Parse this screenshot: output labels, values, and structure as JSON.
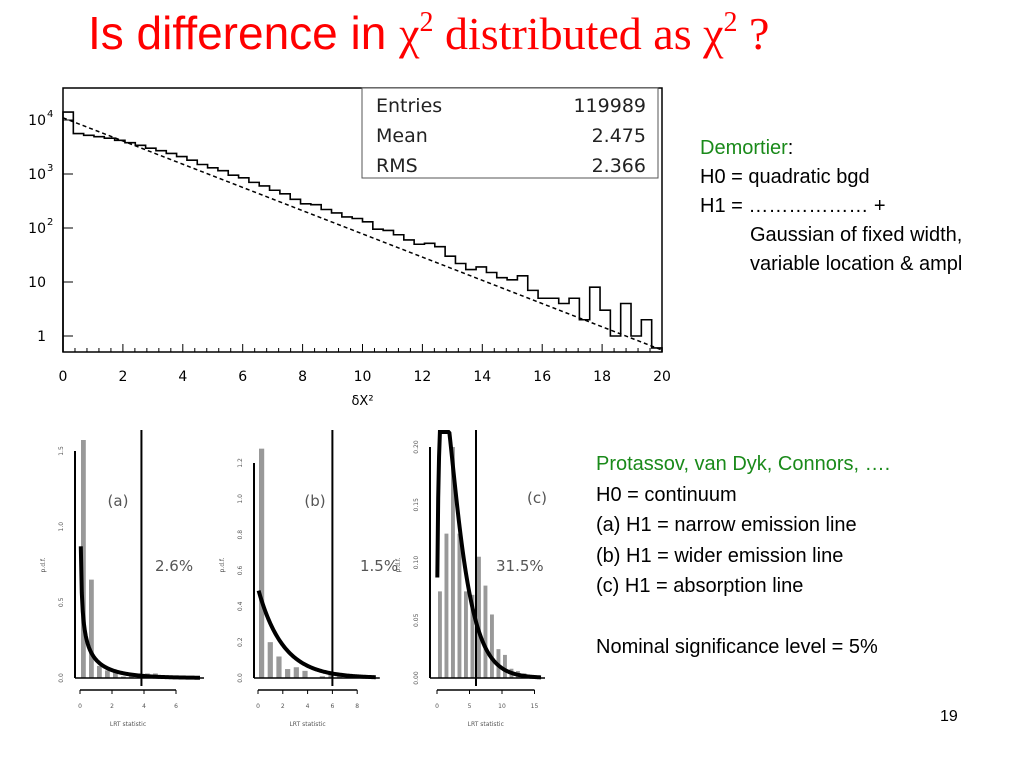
{
  "title": {
    "part1": "Is difference in ",
    "chi": "χ",
    "sup1": "2",
    "part2": " distributed as ",
    "chi2": "χ",
    "sup2": "2",
    "part3": " ?"
  },
  "demortier": {
    "name": "Demortier",
    "colon": ":",
    "lines": [
      "H0 = quadratic bgd",
      "H1 = ……………… +",
      "Gaussian of fixed width,",
      "variable location & ampl"
    ]
  },
  "protassov": {
    "name": "Protassov, van Dyk, Connors, ….",
    "lines": [
      "H0 = continuum",
      "(a) H1 = narrow emission line",
      "(b) H1 = wider emission line",
      "(c) H1 = absorption line",
      "",
      "Nominal significance level = 5%"
    ]
  },
  "page_number": "19",
  "colors": {
    "title": "#ff0000",
    "accent_text": "#1a8a1a",
    "bars": "#999999"
  },
  "chart_data": [
    {
      "type": "bar",
      "subtype": "histogram",
      "xlabel": "δX²",
      "ylabel": "",
      "xlim": [
        0,
        20
      ],
      "ylim": [
        0.5,
        40000
      ],
      "yscale": "log",
      "xticks": [
        "0",
        "2",
        "4",
        "6",
        "8",
        "10",
        "12",
        "14",
        "16",
        "18",
        "20"
      ],
      "yticks": [
        {
          "v": 10000,
          "base": "10",
          "exp": "4"
        },
        {
          "v": 1000,
          "base": "10",
          "exp": "3"
        },
        {
          "v": 100,
          "base": "10",
          "exp": "2"
        },
        {
          "v": 10,
          "base": "10",
          "exp": ""
        },
        {
          "v": 1,
          "base": "1",
          "exp": ""
        }
      ],
      "bin_width": 0.4,
      "values": [
        14000,
        5600,
        5200,
        4900,
        4600,
        4200,
        3800,
        3400,
        3000,
        2700,
        2400,
        2100,
        1800,
        1500,
        1300,
        1150,
        950,
        850,
        700,
        600,
        500,
        430,
        340,
        280,
        270,
        220,
        190,
        160,
        150,
        130,
        95,
        90,
        75,
        60,
        50,
        52,
        45,
        30,
        22,
        17,
        19,
        15,
        12,
        11,
        13,
        7,
        5,
        5,
        4,
        5,
        2,
        8,
        3,
        1,
        4,
        1,
        2,
        0.6
      ],
      "fit_line": {
        "style": "dashed",
        "x": [
          0,
          20
        ],
        "y": [
          11000,
          0.55
        ]
      },
      "stats": [
        {
          "label": "Entries",
          "value": "119989"
        },
        {
          "label": "Mean",
          "value": "2.475"
        },
        {
          "label": "RMS",
          "value": "2.366"
        }
      ]
    },
    {
      "type": "bar",
      "panel": "(a)",
      "percent": "2.6%",
      "xlabel": "LRT statistic",
      "ylabel": "p.d.f.",
      "xticks": [
        0,
        2,
        4,
        6
      ],
      "yticks": [
        "0.0",
        "0.5",
        "1.0",
        "1.5"
      ],
      "ymax": 1.5,
      "cutoff": 3.84,
      "bin_width": 0.5,
      "values": [
        1.58,
        0.65,
        0.08,
        0.05,
        0.05,
        0.01,
        0.01,
        0.02,
        0.03,
        0.03
      ],
      "curve": "chi2_half_1dof"
    },
    {
      "type": "bar",
      "panel": "(b)",
      "percent": "1.5%",
      "xlabel": "LRT statistic",
      "ylabel": "p.d.f.",
      "xticks": [
        0,
        2,
        4,
        6,
        8
      ],
      "yticks": [
        "0.0",
        "0.2",
        "0.4",
        "0.6",
        "0.8",
        "1.0",
        "1.2"
      ],
      "ymax": 1.2,
      "cutoff": 6.0,
      "bin_width": 0.7,
      "values": [
        1.28,
        0.2,
        0.12,
        0.05,
        0.06,
        0.04,
        0,
        0.01,
        0.02,
        0.03,
        0.02
      ],
      "curve": "chi2_half_2dof"
    },
    {
      "type": "bar",
      "panel": "(c)",
      "percent": "31.5%",
      "xlabel": "LRT statistic",
      "ylabel": "p.d.f.",
      "xticks": [
        0,
        5,
        10,
        15
      ],
      "yticks": [
        "0.00",
        "0.05",
        "0.10",
        "0.15",
        "0.20"
      ],
      "ymax": 0.2,
      "cutoff": 6.0,
      "bin_width": 1,
      "values": [
        0.075,
        0.125,
        0.2,
        0.125,
        0.075,
        0.072,
        0.105,
        0.08,
        0.055,
        0.025,
        0.02,
        0.008,
        0.006,
        0.004,
        0.002
      ],
      "curve": "chi2_3dof"
    }
  ]
}
